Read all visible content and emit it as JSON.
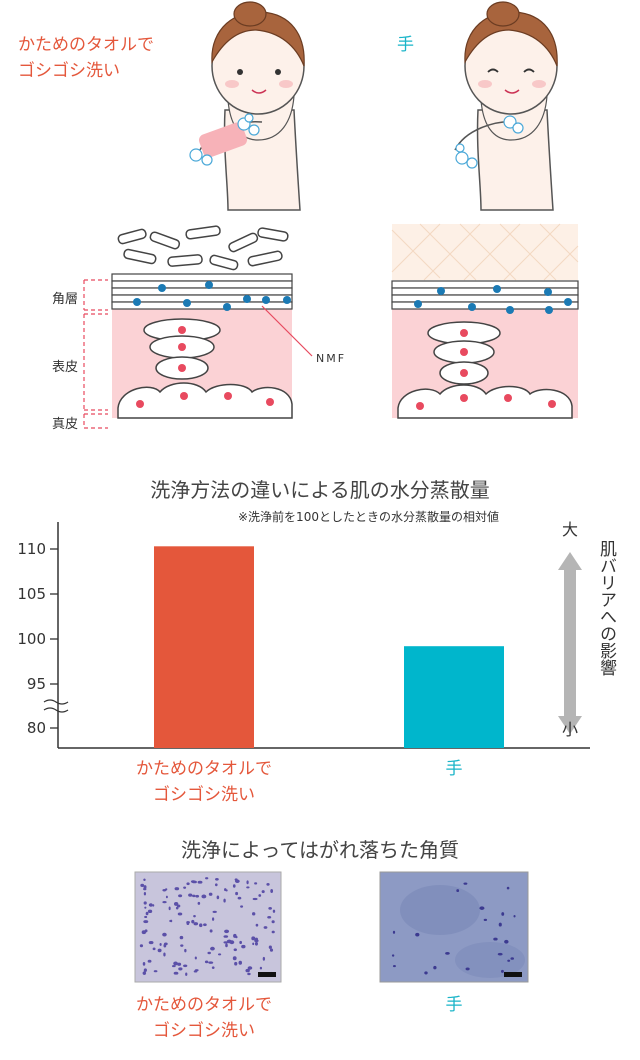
{
  "top": {
    "towel_label": [
      "かためのタオルで",
      "ゴシゴシ洗い"
    ],
    "hand_label": "手"
  },
  "skin": {
    "layers": [
      "角層",
      "表皮",
      "真皮"
    ],
    "nmf_label": "NMF"
  },
  "chart_data": {
    "type": "bar",
    "title": "洗浄方法の違いによる肌の水分蒸散量",
    "note": "※洗浄前を100としたときの水分蒸散量の相対値",
    "categories": [
      "かためのタオルでゴシゴシ洗い",
      "手"
    ],
    "category_lines": [
      [
        "かためのタオルで",
        "ゴシゴシ洗い"
      ],
      [
        "手"
      ]
    ],
    "values": [
      110.3,
      99.2
    ],
    "colors": [
      "#e4573b",
      "#00b6cc"
    ],
    "yticks": [
      80,
      95,
      100,
      105,
      110
    ],
    "ylim": [
      80,
      112
    ],
    "axis_break": true,
    "legend": "none",
    "grid": false,
    "barrier_label": "肌バリアへの影響",
    "barrier_high": "大",
    "barrier_low": "小"
  },
  "micro": {
    "title": "洗浄によってはがれ落ちた角質",
    "towel_label": [
      "かためのタオルで",
      "ゴシゴシ洗い"
    ],
    "hand_label": "手"
  }
}
